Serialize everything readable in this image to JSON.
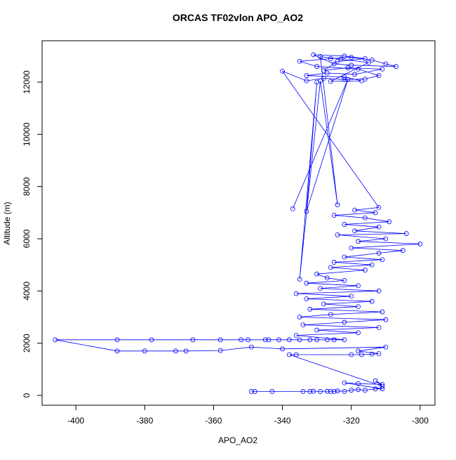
{
  "chart_data": {
    "type": "line",
    "markers": true,
    "title": "ORCAS TF02vlon APO_AO2",
    "x_label": "APO_AO2",
    "y_label": "Altitude (m)",
    "color": "#0000ff",
    "xlim": [
      -409.8,
      -295.7
    ],
    "ylim": [
      -377,
      13587
    ],
    "xticks": [
      -400,
      -380,
      -360,
      -340,
      -320,
      -300
    ],
    "yticks": [
      0,
      2000,
      4000,
      6000,
      8000,
      10000,
      12000
    ],
    "x": [
      -349,
      -348,
      -343,
      -334,
      -332,
      -331,
      -329,
      -327,
      -326,
      -325,
      -324,
      -322,
      -320,
      -318,
      -316,
      -313,
      -311,
      -322,
      -318,
      -311,
      -313,
      -311,
      -338,
      -336,
      -320,
      -317,
      -314,
      -312,
      -318,
      -310,
      -340,
      -349,
      -358,
      -368,
      -371,
      -380,
      -388,
      -406,
      -388,
      -378,
      -366,
      -358,
      -352,
      -350,
      -345,
      -344,
      -341,
      -338,
      -335,
      -332,
      -330,
      -327,
      -325,
      -322,
      -336,
      -318,
      -330,
      -312,
      -334,
      -322,
      -310,
      -335,
      -326,
      -311,
      -332,
      -318,
      -328,
      -314,
      -333,
      -320,
      -336,
      -312,
      -329,
      -318,
      -333,
      -322,
      -327,
      -330,
      -316,
      -326,
      -314,
      -325,
      -311,
      -322,
      -312,
      -305,
      -320,
      -300,
      -318,
      -310,
      -324,
      -304,
      -319,
      -312,
      -322,
      -309,
      -316,
      -325,
      -313,
      -319,
      -312,
      -340,
      -333,
      -328,
      -322,
      -316,
      -312,
      -318,
      -330,
      -335,
      -326,
      -320,
      -314,
      -310,
      -307,
      -320,
      -325,
      -331,
      -322,
      -316,
      -324,
      -328,
      -321,
      -311,
      -319,
      -327,
      -333,
      -322,
      -317,
      -326,
      -315,
      -323,
      -329,
      -324,
      -329,
      -335,
      -330,
      -333,
      -321,
      -337
    ],
    "values": [
      150,
      150,
      150,
      150,
      150,
      160,
      150,
      160,
      150,
      150,
      170,
      150,
      200,
      220,
      200,
      250,
      250,
      480,
      450,
      420,
      560,
      350,
      1560,
      1560,
      1560,
      1560,
      1580,
      1600,
      1700,
      1850,
      1780,
      1850,
      1720,
      1700,
      1700,
      1700,
      1700,
      2130,
      2130,
      2130,
      2130,
      2130,
      2130,
      2130,
      2130,
      2130,
      2130,
      2130,
      2130,
      2130,
      2130,
      2130,
      2130,
      2130,
      2300,
      2400,
      2500,
      2600,
      2700,
      2800,
      2900,
      3000,
      3100,
      3200,
      3300,
      3400,
      3500,
      3600,
      3700,
      3800,
      3900,
      4000,
      4100,
      4200,
      4300,
      4400,
      4500,
      4650,
      4800,
      4900,
      5000,
      5100,
      5200,
      5300,
      5450,
      5550,
      5650,
      5800,
      5900,
      6000,
      6150,
      6200,
      6300,
      6450,
      6550,
      6650,
      6800,
      6900,
      7000,
      7100,
      7200,
      12420,
      12050,
      12150,
      12100,
      12120,
      12250,
      12500,
      12600,
      12800,
      12900,
      12950,
      12850,
      12700,
      12600,
      12650,
      12700,
      13050,
      13000,
      12900,
      12800,
      12450,
      12550,
      12500,
      12300,
      12350,
      12250,
      12200,
      12050,
      12030,
      12750,
      12880,
      12980,
      7300,
      12050,
      4450,
      12000,
      7050,
      12100,
      7150
    ]
  }
}
